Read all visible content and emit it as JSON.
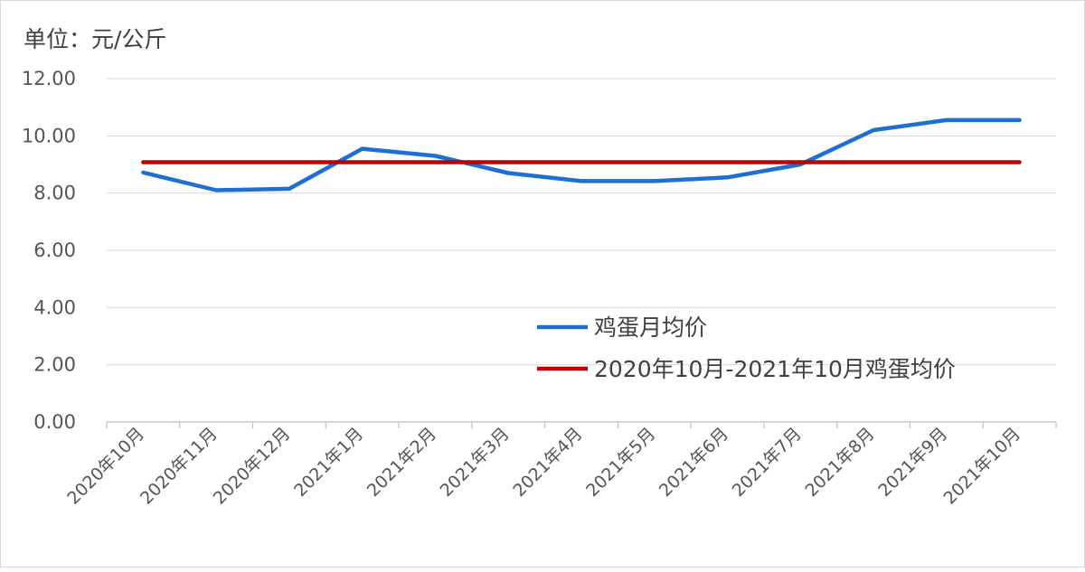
{
  "chart_data": {
    "type": "line",
    "unit_label": "单位：元/公斤",
    "categories": [
      "2020年10月",
      "2020年11月",
      "2020年12月",
      "2021年1月",
      "2021年2月",
      "2021年3月",
      "2021年4月",
      "2021年5月",
      "2021年6月",
      "2021年7月",
      "2021年8月",
      "2021年9月",
      "2021年10月"
    ],
    "ylim": [
      0,
      12
    ],
    "yticks": [
      "0.00",
      "2.00",
      "4.00",
      "6.00",
      "8.00",
      "10.00",
      "12.00"
    ],
    "grid": true,
    "legend_position": "center-right",
    "series": [
      {
        "name": "鸡蛋月均价",
        "color": "#1f6fd1",
        "values": [
          8.72,
          8.1,
          8.15,
          9.55,
          9.3,
          8.7,
          8.42,
          8.42,
          8.55,
          9.0,
          10.2,
          10.55,
          10.55
        ]
      },
      {
        "name": "2020年10月-2021年10月鸡蛋均价",
        "color": "#c00000",
        "values": [
          9.08,
          9.08,
          9.08,
          9.08,
          9.08,
          9.08,
          9.08,
          9.08,
          9.08,
          9.08,
          9.08,
          9.08,
          9.08
        ]
      }
    ]
  }
}
